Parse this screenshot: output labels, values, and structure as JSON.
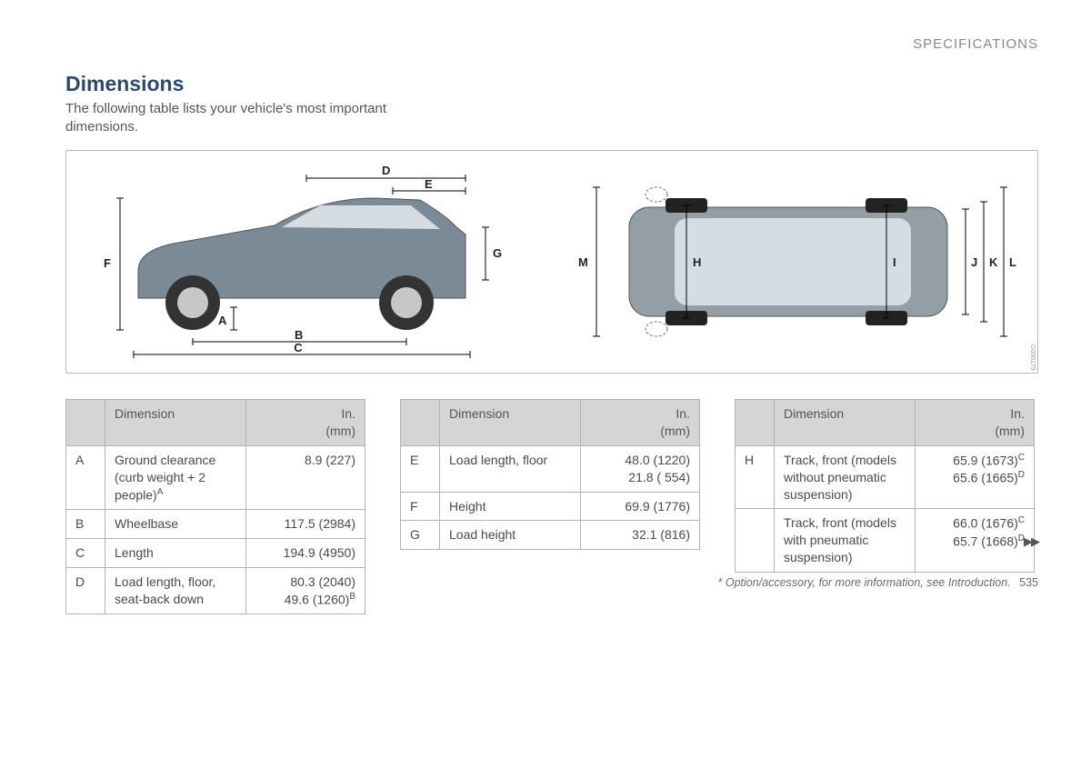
{
  "header": {
    "section": "SPECIFICATIONS"
  },
  "title": "Dimensions",
  "subtitle": "The following table lists your vehicle's most important dimensions.",
  "diagram": {
    "side_labels": {
      "A": "A",
      "B": "B",
      "C": "C",
      "D": "D",
      "E": "E",
      "F": "F",
      "G": "G"
    },
    "top_labels": {
      "H": "H",
      "I": "I",
      "J": "J",
      "K": "K",
      "L": "L",
      "M": "M"
    },
    "image_ref": "G050179",
    "colors": {
      "border": "#b7b7b7",
      "car_body": "#7a8a96",
      "car_glass": "#d6dde2",
      "wheel": "#333333",
      "rim": "#c7c7c7",
      "line": "#000000"
    }
  },
  "tables": {
    "headers": {
      "dim": "Dimension",
      "unit_line1": "In.",
      "unit_line2": "(mm)"
    },
    "t1": [
      {
        "k": "A",
        "d": "Ground clearance (curb weight + 2 people)",
        "sup": "A",
        "v": [
          "8.9 (227)"
        ]
      },
      {
        "k": "B",
        "d": "Wheelbase",
        "v": [
          "117.5 (2984)"
        ]
      },
      {
        "k": "C",
        "d": "Length",
        "v": [
          "194.9 (4950)"
        ]
      },
      {
        "k": "D",
        "d": "Load length, floor, seat-back down",
        "v": [
          "80.3 (2040)",
          "49.6 (1260)<sup>B</sup>"
        ]
      }
    ],
    "t2": [
      {
        "k": "E",
        "d": "Load length, floor",
        "v": [
          "48.0 (1220)",
          "21.8 ( 554)"
        ]
      },
      {
        "k": "F",
        "d": "Height",
        "v": [
          "69.9 (1776)"
        ]
      },
      {
        "k": "G",
        "d": "Load height",
        "v": [
          "32.1 (816)"
        ]
      }
    ],
    "t3": [
      {
        "k": "H",
        "d": "Track, front (models without pneumatic suspension)",
        "v": [
          "65.9 (1673)<sup>C</sup>",
          "65.6 (1665)<sup>D</sup>"
        ]
      },
      {
        "k": "",
        "d": "Track, front (models with pneumatic suspension)",
        "v": [
          "66.0 (1676)<sup>C</sup>",
          "65.7 (1668)<sup>D</sup>"
        ]
      }
    ]
  },
  "footer": {
    "note": "* Option/accessory, for more information, see Introduction.",
    "page": "535",
    "continue": "▶▶"
  }
}
